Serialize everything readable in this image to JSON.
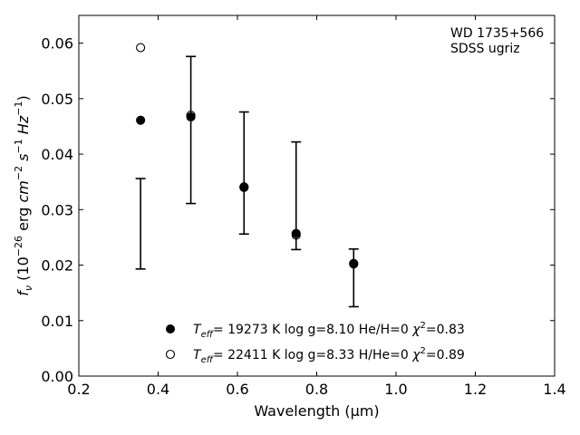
{
  "chart_data": {
    "type": "scatter",
    "xlabel": "Wavelength (μm)",
    "ylabel_parts": {
      "f": "f",
      "nu": "ν",
      "open": " (10",
      "exp1": "−26",
      "erg": " erg ",
      "cm": "cm",
      "exp2": "−2",
      "s": " s",
      "exp3": "−1",
      "hz": " Hz",
      "exp4": "−1",
      "close": ")"
    },
    "xlim": [
      0.2,
      1.4
    ],
    "ylim": [
      0.0,
      0.065
    ],
    "x_ticks": [
      0.2,
      0.4,
      0.6,
      0.8,
      1.0,
      1.2,
      1.4
    ],
    "x_tick_labels": [
      "0.2",
      "0.4",
      "0.6",
      "0.8",
      "1.0",
      "1.2",
      "1.4"
    ],
    "y_ticks": [
      0.0,
      0.01,
      0.02,
      0.03,
      0.04,
      0.05,
      0.06
    ],
    "y_tick_labels": [
      "0.00",
      "0.01",
      "0.02",
      "0.03",
      "0.04",
      "0.05",
      "0.06"
    ],
    "grid": false,
    "legend_position": "bottom-center",
    "annotation_lines": [
      "WD 1735+566",
      "SDSS ugriz"
    ],
    "observed": {
      "x": [
        0.3557,
        0.4825,
        0.6166,
        0.748,
        0.8932
      ],
      "y_low": [
        0.0193,
        0.0311,
        0.0256,
        0.0228,
        0.0125
      ],
      "y_high": [
        0.0356,
        0.0576,
        0.0476,
        0.0422,
        0.0229
      ]
    },
    "series": [
      {
        "name": "Teff = 19273 K log g=8.10 He/H=0 χ²=0.83",
        "marker": "filled-circle",
        "x": [
          0.3557,
          0.4825,
          0.6166,
          0.748,
          0.8932
        ],
        "y": [
          0.0461,
          0.0467,
          0.0341,
          0.0257,
          0.0203
        ],
        "legend": {
          "t": "T",
          "eff": "eff",
          "rest": "= 19273 K  log g=8.10  He/H=0  ",
          "chi": "χ",
          "sup": "2",
          "tail": "=0.83"
        }
      },
      {
        "name": "Teff = 22411 K log g=8.33 H/He=0 χ²=0.89",
        "marker": "open-circle",
        "x": [
          0.3557,
          0.4825,
          0.6166,
          0.748,
          0.8932
        ],
        "y": [
          0.0592,
          0.047,
          0.034,
          0.0254,
          0.0202
        ],
        "legend": {
          "t": "T",
          "eff": "eff",
          "rest": "= 22411 K  log g=8.33  H/He=0  ",
          "chi": "χ",
          "sup": "2",
          "tail": "=0.89"
        }
      }
    ]
  }
}
